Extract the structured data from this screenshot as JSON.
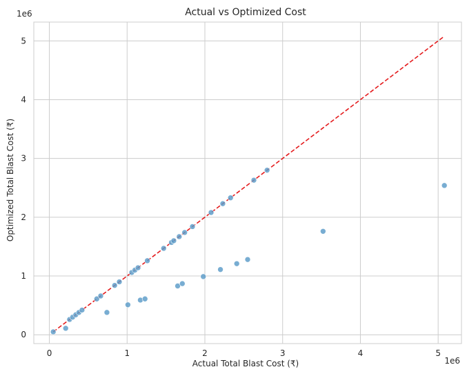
{
  "chart_data": {
    "type": "scatter",
    "title": "Actual vs Optimized Cost",
    "xlabel": "Actual Total Blast Cost (₹)",
    "ylabel": "Optimized Total Blast Cost (₹)",
    "x_offset_label": "1e6",
    "y_offset_label": "1e6",
    "xlim": [
      -0.2,
      5.3
    ],
    "ylim": [
      -0.15,
      5.32
    ],
    "xticks": [
      0,
      1,
      2,
      3,
      4,
      5
    ],
    "yticks": [
      0,
      1,
      2,
      3,
      4,
      5
    ],
    "grid": true,
    "point_color": "#5a9bc8",
    "reference_line": {
      "style": "dashed",
      "color": "#e41a1c",
      "from": [
        0.05,
        0.05
      ],
      "to": [
        5.08,
        5.08
      ]
    },
    "points": [
      [
        0.05,
        0.05
      ],
      [
        0.21,
        0.11
      ],
      [
        0.26,
        0.26
      ],
      [
        0.3,
        0.3
      ],
      [
        0.34,
        0.34
      ],
      [
        0.38,
        0.38
      ],
      [
        0.42,
        0.42
      ],
      [
        0.61,
        0.61
      ],
      [
        0.66,
        0.66
      ],
      [
        0.74,
        0.38
      ],
      [
        0.84,
        0.84
      ],
      [
        0.9,
        0.9
      ],
      [
        1.01,
        0.51
      ],
      [
        1.06,
        1.06
      ],
      [
        1.1,
        1.1
      ],
      [
        1.14,
        1.14
      ],
      [
        1.17,
        0.59
      ],
      [
        1.23,
        0.61
      ],
      [
        1.26,
        1.26
      ],
      [
        1.47,
        1.47
      ],
      [
        1.57,
        1.57
      ],
      [
        1.6,
        1.6
      ],
      [
        1.65,
        0.83
      ],
      [
        1.67,
        1.67
      ],
      [
        1.71,
        0.87
      ],
      [
        1.74,
        1.74
      ],
      [
        1.84,
        1.84
      ],
      [
        1.98,
        0.99
      ],
      [
        2.08,
        2.08
      ],
      [
        2.2,
        1.11
      ],
      [
        2.23,
        2.23
      ],
      [
        2.33,
        2.33
      ],
      [
        2.41,
        1.21
      ],
      [
        2.55,
        1.28
      ],
      [
        2.63,
        2.63
      ],
      [
        2.8,
        2.8
      ],
      [
        3.52,
        1.76
      ],
      [
        5.08,
        2.54
      ]
    ]
  }
}
